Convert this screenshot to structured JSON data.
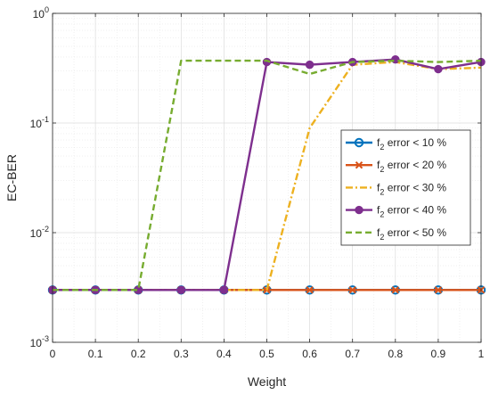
{
  "chart_data": {
    "type": "line",
    "xlabel": "Weight",
    "ylabel": "EC-BER",
    "xlim": [
      0,
      1
    ],
    "ylim": [
      0.001,
      1
    ],
    "yscale": "log",
    "grid": true,
    "minor_grid": true,
    "legend_placement": "right",
    "x_ticks": [
      {
        "value": 0,
        "label": "0"
      },
      {
        "value": 0.1,
        "label": "0.1"
      },
      {
        "value": 0.2,
        "label": "0.2"
      },
      {
        "value": 0.3,
        "label": "0.3"
      },
      {
        "value": 0.4,
        "label": "0.4"
      },
      {
        "value": 0.5,
        "label": "0.5"
      },
      {
        "value": 0.6,
        "label": "0.6"
      },
      {
        "value": 0.7,
        "label": "0.7"
      },
      {
        "value": 0.8,
        "label": "0.8"
      },
      {
        "value": 0.9,
        "label": "0.9"
      },
      {
        "value": 1,
        "label": "1"
      }
    ],
    "y_ticks": [
      {
        "value": 0.001,
        "base": "10",
        "exp": "-3"
      },
      {
        "value": 0.01,
        "base": "10",
        "exp": "-2"
      },
      {
        "value": 0.1,
        "base": "10",
        "exp": "-1"
      },
      {
        "value": 1,
        "base": "10",
        "exp": "0"
      }
    ],
    "x": [
      0,
      0.1,
      0.2,
      0.3,
      0.4,
      0.5,
      0.6,
      0.7,
      0.8,
      0.9,
      1.0
    ],
    "series": [
      {
        "label_main": "f",
        "label_sub": "2",
        "label_rest": " error < 10 %",
        "color": "#0072BD",
        "dash": "",
        "marker": "circle",
        "values": [
          0.003,
          0.003,
          0.003,
          0.003,
          0.003,
          0.003,
          0.003,
          0.003,
          0.003,
          0.003,
          0.003
        ]
      },
      {
        "label_main": "f",
        "label_sub": "2",
        "label_rest": " error < 20 %",
        "color": "#D95319",
        "dash": "",
        "marker": "x",
        "values": [
          0.003,
          0.003,
          0.003,
          0.003,
          0.003,
          0.003,
          0.003,
          0.003,
          0.003,
          0.003,
          0.003
        ]
      },
      {
        "label_main": "f",
        "label_sub": "2",
        "label_rest": " error < 30 %",
        "color": "#EDB120",
        "dash": "8 3 2 3",
        "marker": "none",
        "values": [
          0.003,
          0.003,
          0.003,
          0.003,
          0.003,
          0.003,
          0.09,
          0.34,
          0.36,
          0.31,
          0.32
        ]
      },
      {
        "label_main": "f",
        "label_sub": "2",
        "label_rest": " error < 40 %",
        "color": "#7E2F8E",
        "dash": "",
        "marker": "dot",
        "values": [
          0.003,
          0.003,
          0.003,
          0.003,
          0.003,
          0.36,
          0.34,
          0.36,
          0.38,
          0.31,
          0.36
        ]
      },
      {
        "label_main": "f",
        "label_sub": "2",
        "label_rest": " error < 50 %",
        "color": "#77AC30",
        "dash": "7 4",
        "marker": "none",
        "values": [
          0.003,
          0.003,
          0.003,
          0.37,
          0.37,
          0.37,
          0.28,
          0.36,
          0.37,
          0.36,
          0.37
        ]
      }
    ]
  }
}
